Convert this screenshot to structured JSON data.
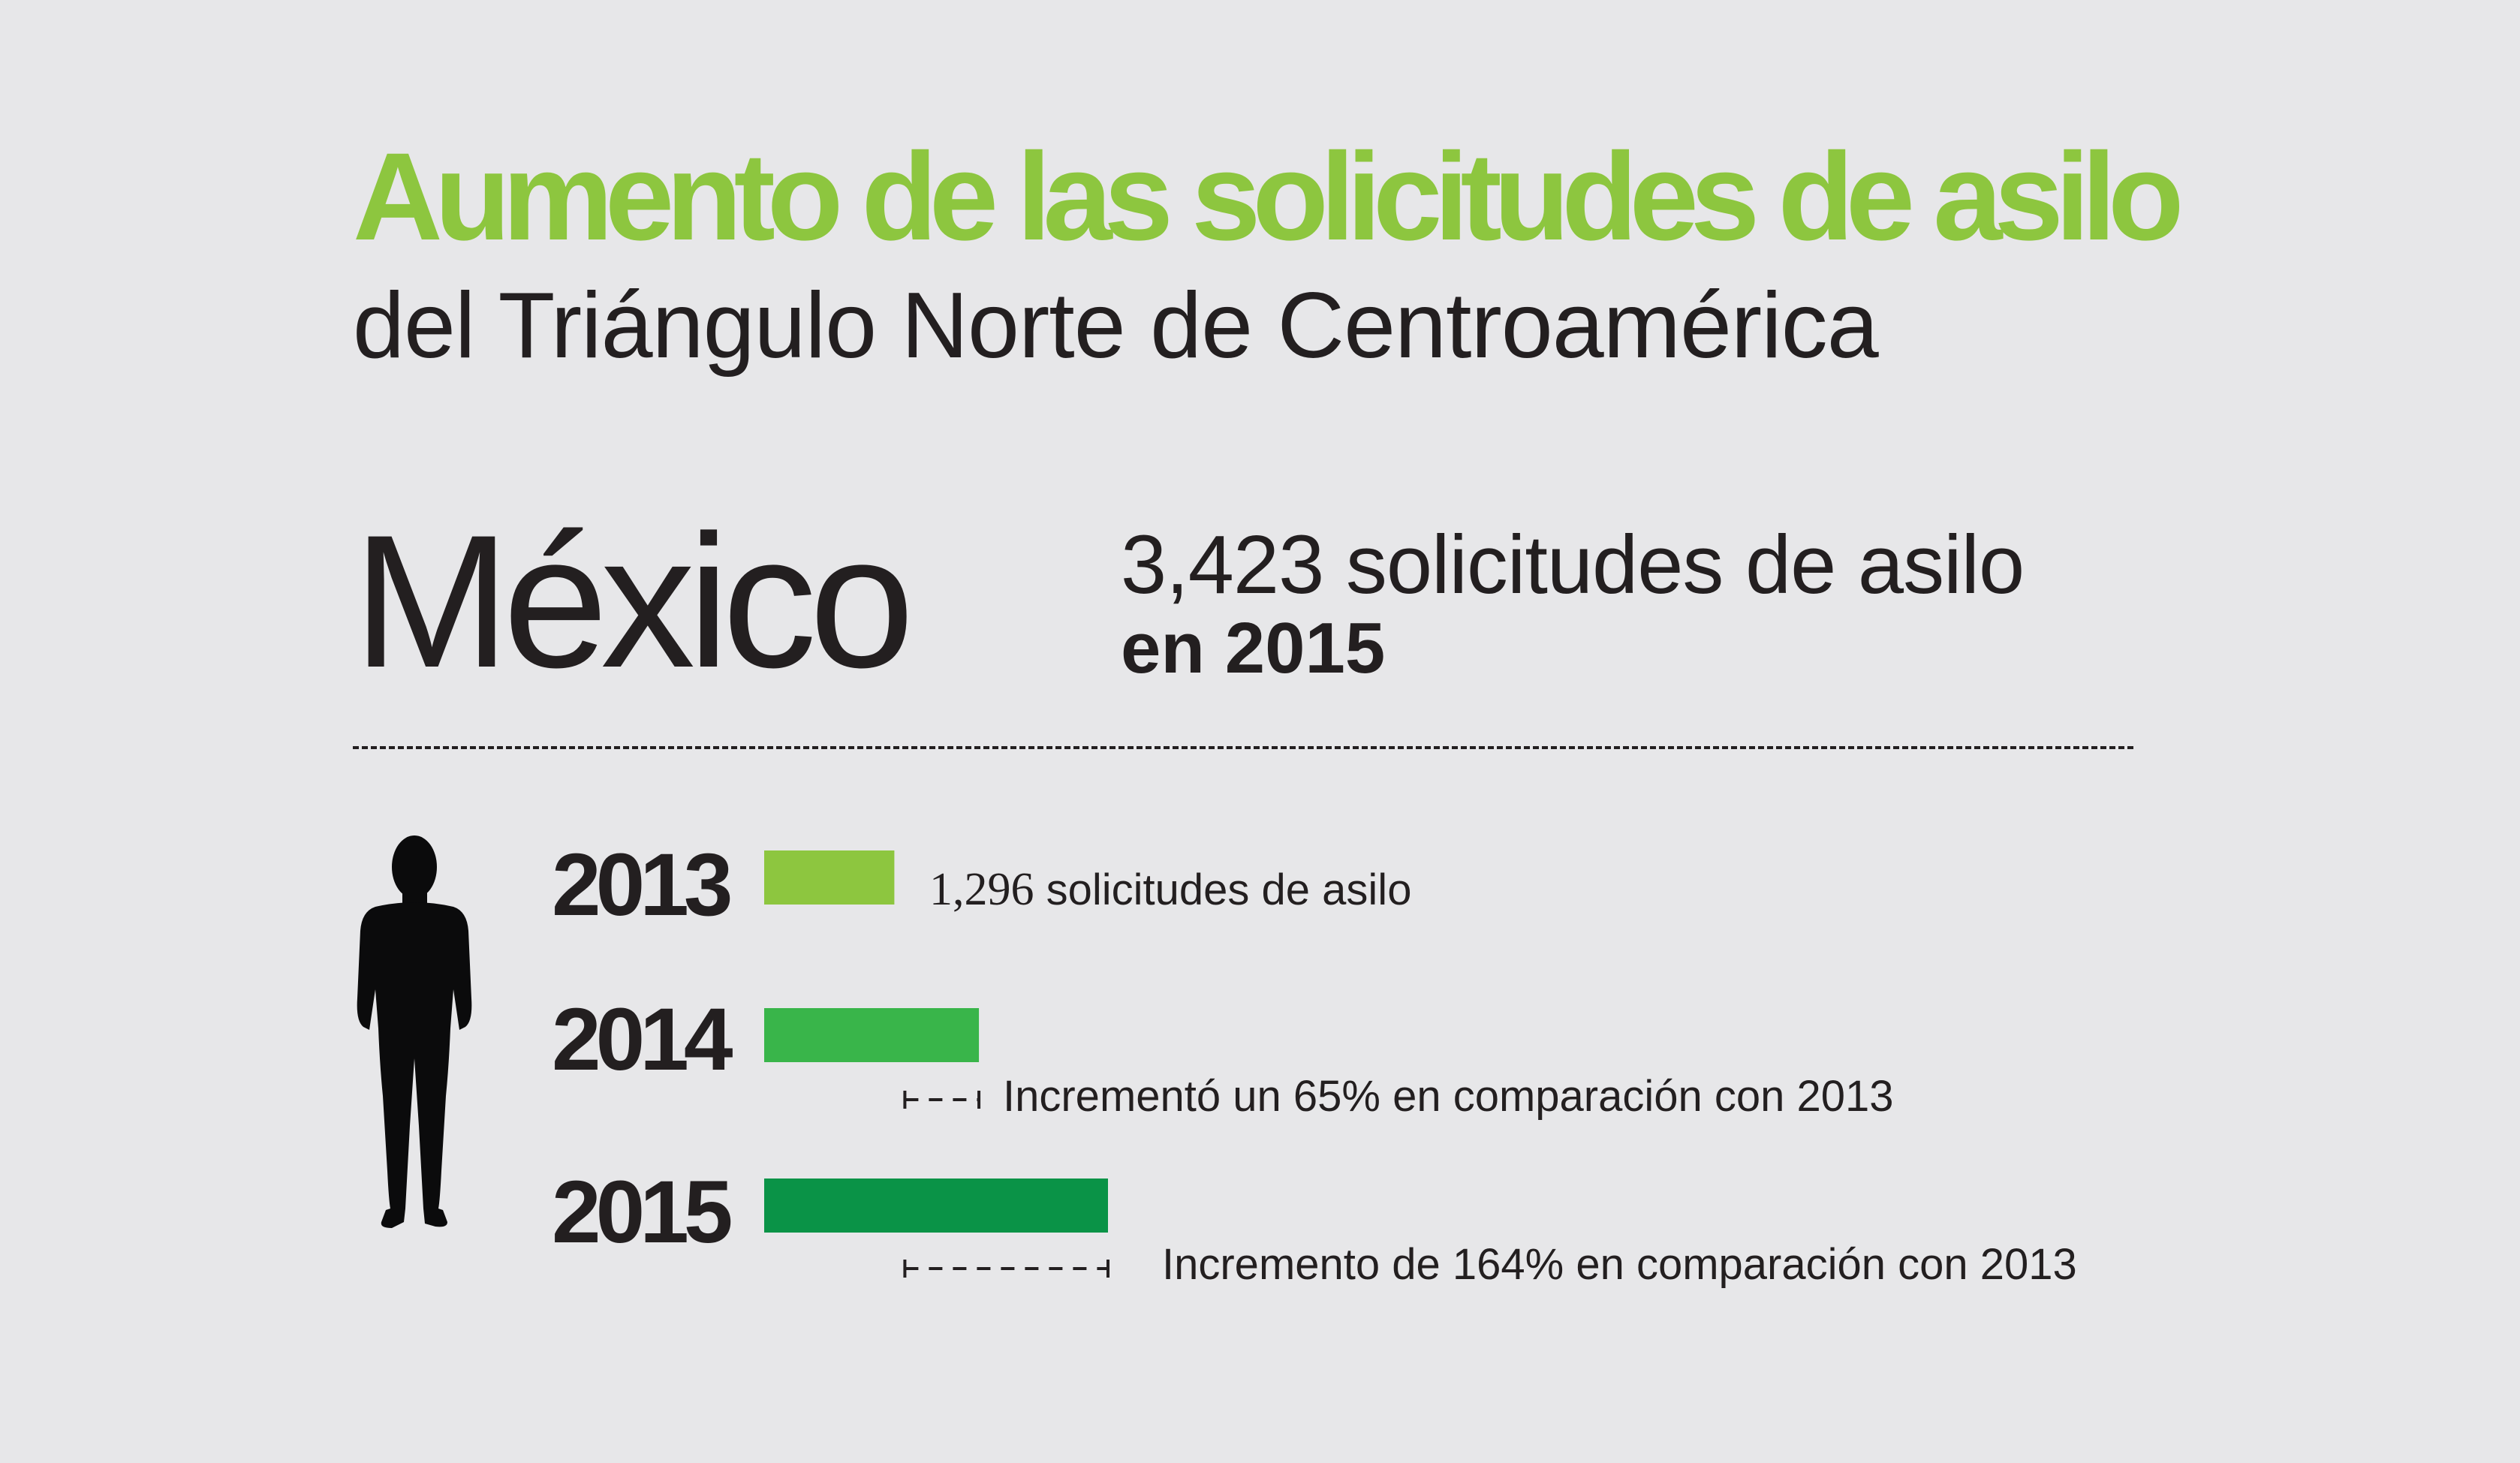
{
  "header": {
    "title": "Aumento de las solicitudes de asilo",
    "subtitle": "del Triángulo Norte de Centroamérica"
  },
  "country": "México",
  "total": {
    "line1": "3,423 solicitudes de asilo",
    "line2": "en 2015"
  },
  "colors": {
    "accent": "#8dc63f",
    "bar_2013": "#8dc63f",
    "bar_2014": "#39b54a",
    "bar_2015": "#0a9347",
    "text": "#231f20",
    "background": "#e7e7e9"
  },
  "icons": {
    "person": "person-silhouette-icon"
  },
  "chart_data": {
    "type": "bar",
    "orientation": "horizontal",
    "title": "",
    "categories": [
      "2013",
      "2014",
      "2015"
    ],
    "series": [
      {
        "values": [
          1296,
          2138,
          3423
        ]
      }
    ],
    "xlabel": "",
    "ylabel": "",
    "grid": false,
    "annotations": [
      {
        "category": "2013",
        "value_text": "1,296",
        "text": "solicitudes de asilo"
      },
      {
        "category": "2014",
        "text": "Incrementó un 65% en comparación con 2013"
      },
      {
        "category": "2015",
        "text": "Incremento de 164% en comparación con 2013"
      }
    ]
  }
}
